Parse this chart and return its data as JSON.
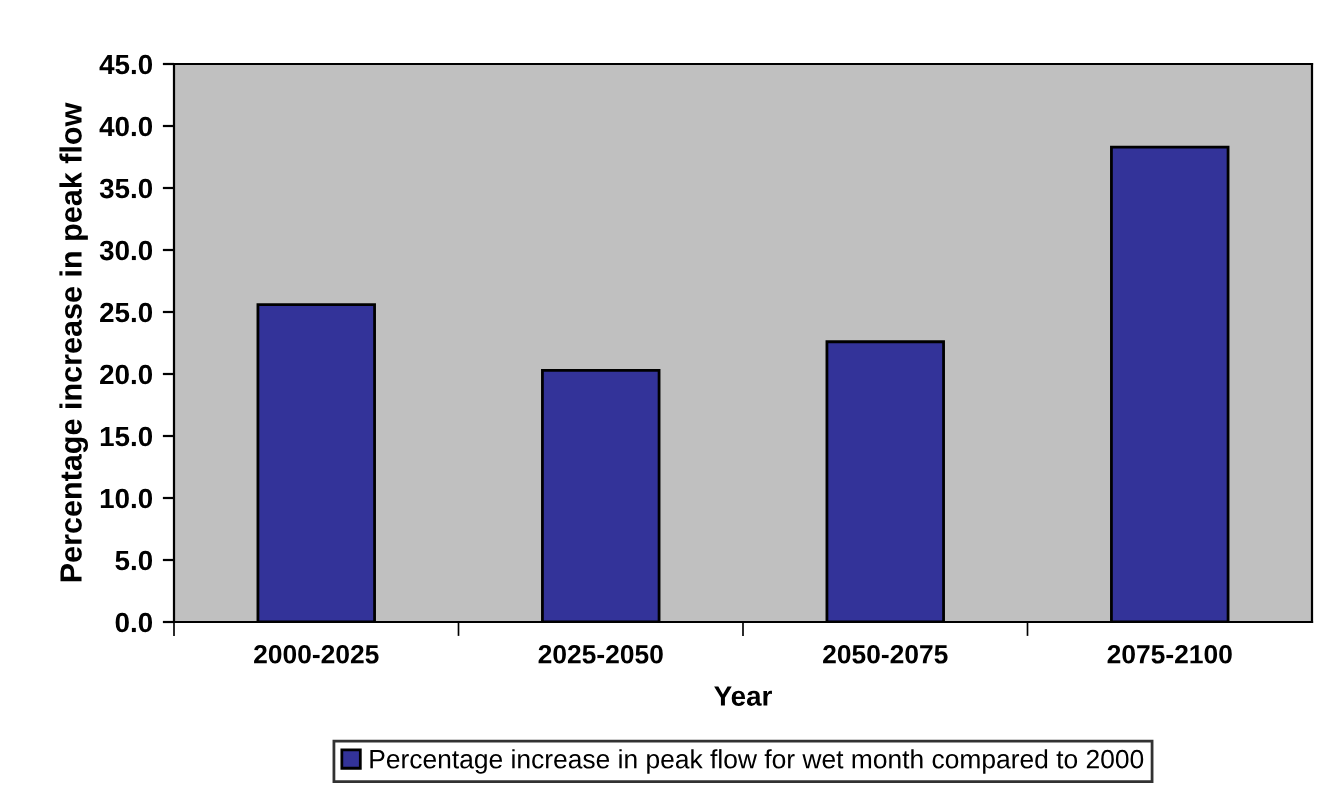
{
  "chart_data": {
    "type": "bar",
    "xlabel": "Year",
    "ylabel": "Percentage increase in peak flow",
    "categories": [
      "2000-2025",
      "2025-2050",
      "2050-2075",
      "2075-2100"
    ],
    "series": [
      {
        "name": "Percentage increase in peak flow for wet month compared to 2000",
        "color": "#333399",
        "values": [
          25.6,
          20.3,
          22.6,
          38.3
        ]
      }
    ],
    "ylim": [
      0,
      45
    ],
    "yticks": [
      {
        "value": 0,
        "label": "0.0"
      },
      {
        "value": 5,
        "label": "5.0"
      },
      {
        "value": 10,
        "label": "10.0"
      },
      {
        "value": 15,
        "label": "15.0"
      },
      {
        "value": 20,
        "label": "20.0"
      },
      {
        "value": 25,
        "label": "25.0"
      },
      {
        "value": 30,
        "label": "30.0"
      },
      {
        "value": 35,
        "label": "35.0"
      },
      {
        "value": 40,
        "label": "40.0"
      },
      {
        "value": 45,
        "label": "45.0"
      }
    ],
    "grid": false,
    "legend": "bottom"
  }
}
